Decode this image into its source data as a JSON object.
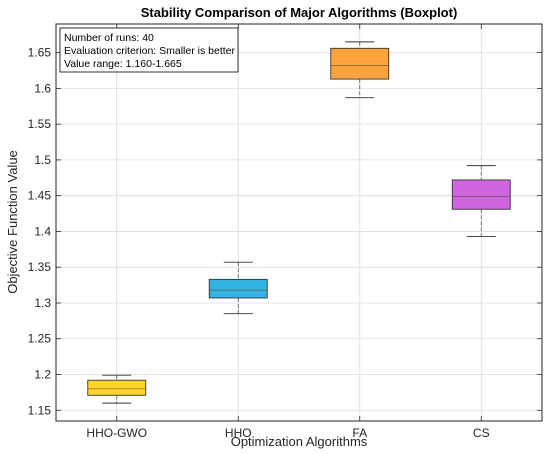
{
  "chart_data": {
    "type": "boxplot",
    "title": "Stability Comparison of Major Algorithms (Boxplot)",
    "xlabel": "Optimization Algorithms",
    "ylabel": "Objective Function Value",
    "ylim": [
      1.135,
      1.69
    ],
    "yticks": [
      1.15,
      1.2,
      1.25,
      1.3,
      1.35,
      1.4,
      1.45,
      1.5,
      1.55,
      1.6,
      1.65
    ],
    "ytick_labels": [
      "1.15",
      "1.2",
      "1.25",
      "1.3",
      "1.35",
      "1.4",
      "1.45",
      "1.5",
      "1.55",
      "1.6",
      "1.65"
    ],
    "grid": true,
    "categories": [
      "HHO-GWO",
      "HHO",
      "FA",
      "CS"
    ],
    "series": [
      {
        "category": "HHO-GWO",
        "min": 1.16,
        "q1": 1.171,
        "median": 1.18,
        "q3": 1.192,
        "max": 1.199,
        "color": "#FFD52B"
      },
      {
        "category": "HHO",
        "min": 1.285,
        "q1": 1.307,
        "median": 1.318,
        "q3": 1.333,
        "max": 1.357,
        "color": "#33B3E0"
      },
      {
        "category": "FA",
        "min": 1.587,
        "q1": 1.613,
        "median": 1.632,
        "q3": 1.656,
        "max": 1.665,
        "color": "#FFA33C"
      },
      {
        "category": "CS",
        "min": 1.393,
        "q1": 1.431,
        "median": 1.449,
        "q3": 1.472,
        "max": 1.492,
        "color": "#D065E0"
      }
    ],
    "annotation": {
      "lines": [
        "Number of runs: 40",
        "Evaluation criterion: Smaller is better",
        "Value range: 1.160-1.665"
      ],
      "placement": "top-left"
    }
  }
}
